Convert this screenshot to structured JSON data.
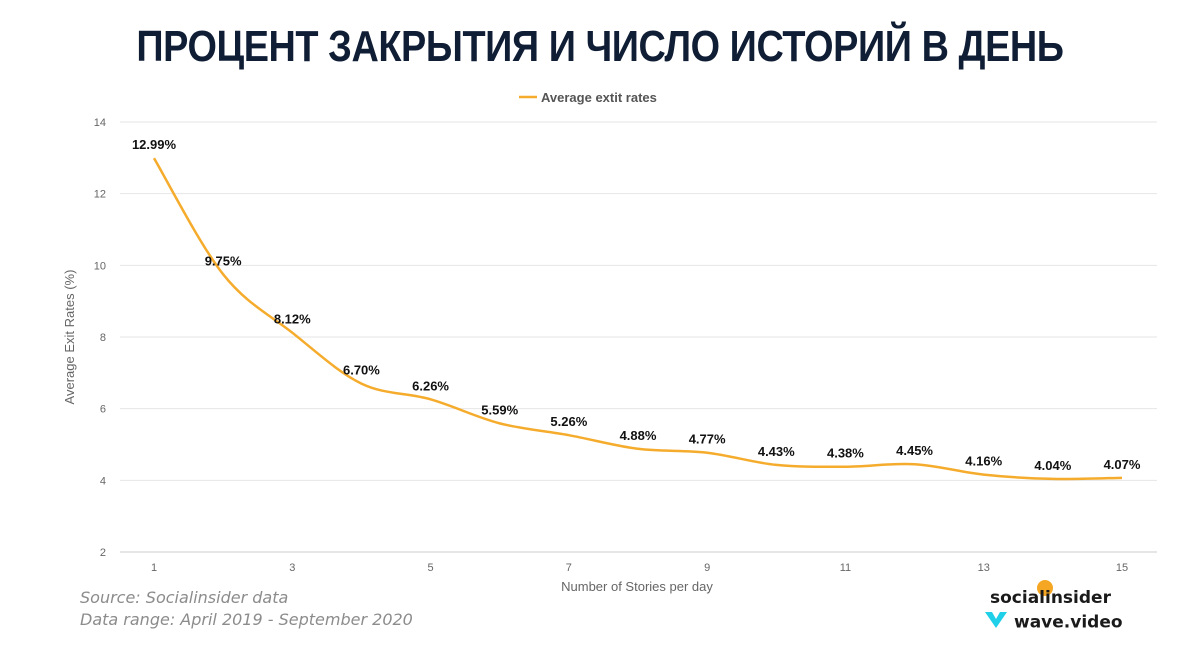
{
  "title": "ПРОЦЕНТ ЗАКРЫТИЯ И ЧИСЛО ИСТОРИЙ В ДЕНЬ",
  "source_line1": "Source: Socialinsider data",
  "source_line2": "Data range: April 2019 - September 2020",
  "brand1": "socialinsider",
  "brand2": "wave.video",
  "colors": {
    "line": "#f5ac2d",
    "title": "#0f1d35",
    "grid": "#e6e6e6"
  },
  "chart_data": {
    "type": "line",
    "legend": "Average extit rates",
    "legend_position": "top-center",
    "xlabel": "Number of Stories per day",
    "ylabel": "Average Exit Rates (%)",
    "x": [
      1,
      2,
      3,
      4,
      5,
      6,
      7,
      8,
      9,
      10,
      11,
      12,
      13,
      14,
      15
    ],
    "values": [
      12.99,
      9.75,
      8.12,
      6.7,
      6.26,
      5.59,
      5.26,
      4.88,
      4.77,
      4.43,
      4.38,
      4.45,
      4.16,
      4.04,
      4.07
    ],
    "data_labels": [
      "12.99%",
      "9.75%",
      "8.12%",
      "6.70%",
      "6.26%",
      "5.59%",
      "5.26%",
      "4.88%",
      "4.77%",
      "4.43%",
      "4.38%",
      "4.45%",
      "4.16%",
      "4.04%",
      "4.07%"
    ],
    "xticks": [
      "1",
      "3",
      "5",
      "7",
      "9",
      "11",
      "13",
      "15"
    ],
    "xtick_values": [
      1,
      3,
      5,
      7,
      9,
      11,
      13,
      15
    ],
    "yticks": [
      "2",
      "4",
      "6",
      "8",
      "10",
      "12",
      "14"
    ],
    "ytick_values": [
      2,
      4,
      6,
      8,
      10,
      12,
      14
    ],
    "xlim": [
      0.5,
      15.5
    ],
    "ylim": [
      2,
      14
    ],
    "grid": true
  }
}
